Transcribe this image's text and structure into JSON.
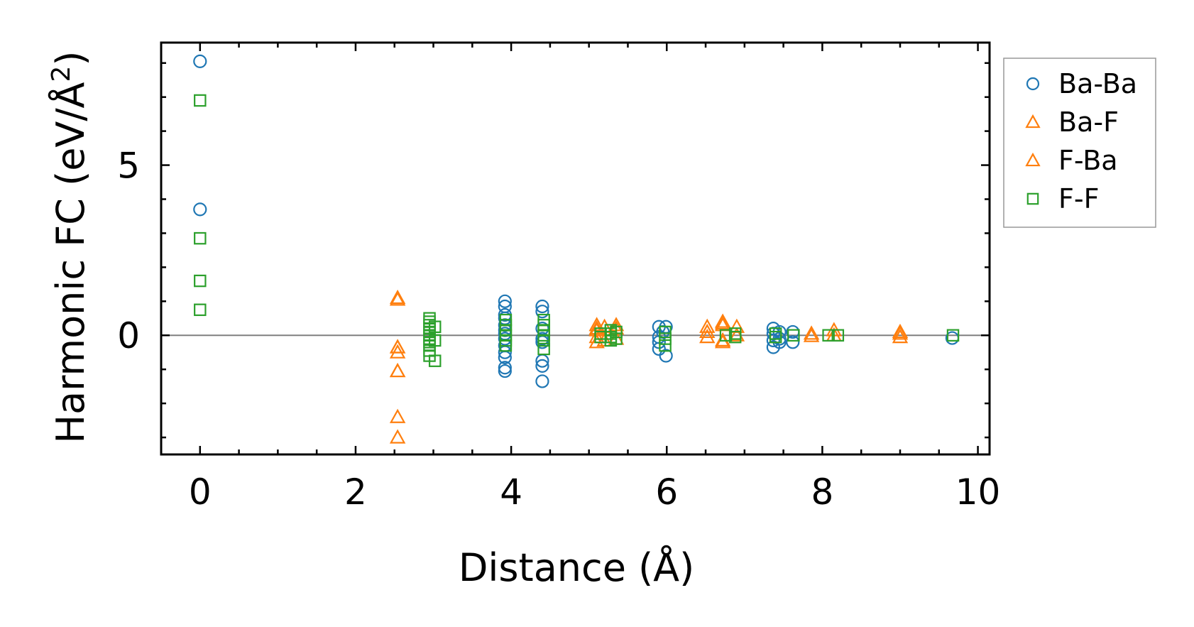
{
  "colors": {
    "Ba-Ba": "#1f77b4",
    "Ba-F": "#ff7f0e",
    "F-Ba": "#ff7f0e",
    "F-F": "#2ca02c",
    "zero_line": "#808080",
    "legend_border": "#999999"
  },
  "chart_data": {
    "type": "scatter",
    "xlabel": "Distance (Å)",
    "ylabel_main": "Harmonic FC (eV/Å",
    "ylabel_sup": "2",
    "ylabel_close": ")",
    "xlim": [
      -0.5,
      10.15
    ],
    "ylim": [
      -3.5,
      8.6
    ],
    "x_ticks": [
      0,
      2,
      4,
      6,
      8,
      10
    ],
    "x_tick_labels": [
      "0",
      "2",
      "4",
      "6",
      "8",
      "10"
    ],
    "y_ticks": [
      0,
      5
    ],
    "y_tick_labels": [
      "0",
      "5"
    ],
    "grid": false,
    "legend_position": "outside-right",
    "zero_line": true,
    "series": [
      {
        "name": "Ba-Ba",
        "marker": "circle",
        "points": [
          [
            0,
            8.05
          ],
          [
            0,
            3.7
          ],
          [
            3.92,
            1.0
          ],
          [
            3.92,
            0.85
          ],
          [
            3.92,
            0.6
          ],
          [
            3.92,
            0.5
          ],
          [
            3.92,
            0.3
          ],
          [
            3.92,
            0.15
          ],
          [
            3.92,
            0.05
          ],
          [
            3.92,
            -0.1
          ],
          [
            3.92,
            -0.3
          ],
          [
            3.92,
            -0.5
          ],
          [
            3.92,
            -0.65
          ],
          [
            3.92,
            -0.95
          ],
          [
            3.92,
            -1.05
          ],
          [
            4.4,
            0.85
          ],
          [
            4.4,
            0.7
          ],
          [
            4.4,
            0.2
          ],
          [
            4.4,
            -0.1
          ],
          [
            4.4,
            -0.2
          ],
          [
            4.4,
            -0.75
          ],
          [
            4.4,
            -0.9
          ],
          [
            4.4,
            -1.35
          ],
          [
            5.9,
            0.25
          ],
          [
            5.95,
            0.1
          ],
          [
            5.9,
            -0.05
          ],
          [
            5.9,
            -0.2
          ],
          [
            5.9,
            -0.4
          ],
          [
            5.99,
            0.25
          ],
          [
            5.99,
            -0.6
          ],
          [
            7.37,
            0.2
          ],
          [
            7.37,
            0.05
          ],
          [
            7.37,
            -0.15
          ],
          [
            7.37,
            -0.35
          ],
          [
            7.45,
            0.1
          ],
          [
            7.45,
            -0.1
          ],
          [
            7.45,
            -0.2
          ],
          [
            7.62,
            0.1
          ],
          [
            7.62,
            -0.2
          ],
          [
            9.67,
            -0.08
          ]
        ]
      },
      {
        "name": "Ba-F",
        "marker": "triangle",
        "points": [
          [
            2.54,
            1.1
          ],
          [
            2.54,
            -0.35
          ],
          [
            2.54,
            -0.5
          ],
          [
            2.54,
            -1.05
          ],
          [
            2.54,
            -2.4
          ],
          [
            2.54,
            -3.0
          ],
          [
            5.1,
            0.3
          ],
          [
            5.1,
            0.15
          ],
          [
            5.1,
            -0.05
          ],
          [
            5.1,
            -0.2
          ],
          [
            5.2,
            0.25
          ],
          [
            5.2,
            -0.15
          ],
          [
            5.35,
            0.3
          ],
          [
            5.35,
            -0.1
          ],
          [
            6.52,
            0.25
          ],
          [
            6.52,
            0.1
          ],
          [
            6.52,
            -0.05
          ],
          [
            6.72,
            0.4
          ],
          [
            6.72,
            0.3
          ],
          [
            6.72,
            -0.15
          ],
          [
            6.72,
            -0.2
          ],
          [
            6.9,
            0.25
          ],
          [
            6.9,
            0.0
          ],
          [
            7.86,
            0.05
          ],
          [
            7.86,
            -0.02
          ],
          [
            8.15,
            0.15
          ],
          [
            8.15,
            0.0
          ],
          [
            9.0,
            0.1
          ],
          [
            9.0,
            -0.05
          ]
        ]
      },
      {
        "name": "F-Ba",
        "marker": "triangle",
        "points": [
          [
            2.54,
            1.05
          ],
          [
            2.54,
            -0.35
          ],
          [
            2.54,
            -1.05
          ],
          [
            5.1,
            0.2
          ],
          [
            5.35,
            0.2
          ],
          [
            6.72,
            0.35
          ],
          [
            9.0,
            0.05
          ]
        ]
      },
      {
        "name": "F-F",
        "marker": "square",
        "points": [
          [
            0,
            6.9
          ],
          [
            0,
            2.85
          ],
          [
            0,
            1.6
          ],
          [
            0,
            0.75
          ],
          [
            2.95,
            0.5
          ],
          [
            2.95,
            0.4
          ],
          [
            2.95,
            0.3
          ],
          [
            2.95,
            0.2
          ],
          [
            2.95,
            0.1
          ],
          [
            2.95,
            0.0
          ],
          [
            2.95,
            -0.1
          ],
          [
            2.95,
            -0.2
          ],
          [
            2.95,
            -0.3
          ],
          [
            2.95,
            -0.45
          ],
          [
            2.95,
            -0.6
          ],
          [
            3.02,
            0.25
          ],
          [
            3.02,
            -0.15
          ],
          [
            3.02,
            -0.75
          ],
          [
            3.93,
            0.45
          ],
          [
            3.93,
            0.3
          ],
          [
            3.93,
            0.15
          ],
          [
            3.93,
            0.0
          ],
          [
            3.93,
            -0.15
          ],
          [
            3.93,
            -0.3
          ],
          [
            4.42,
            0.45
          ],
          [
            4.42,
            0.3
          ],
          [
            4.42,
            0.15
          ],
          [
            4.42,
            0.0
          ],
          [
            4.42,
            -0.15
          ],
          [
            4.42,
            -0.4
          ],
          [
            5.15,
            0.05
          ],
          [
            5.15,
            -0.05
          ],
          [
            5.28,
            0.15
          ],
          [
            5.28,
            0.05
          ],
          [
            5.28,
            -0.05
          ],
          [
            5.28,
            -0.15
          ],
          [
            5.35,
            0.1
          ],
          [
            5.35,
            -0.1
          ],
          [
            5.98,
            0.1
          ],
          [
            5.98,
            -0.1
          ],
          [
            5.98,
            -0.3
          ],
          [
            6.76,
            0.0
          ],
          [
            6.88,
            0.05
          ],
          [
            6.88,
            -0.05
          ],
          [
            7.4,
            0.05
          ],
          [
            7.4,
            -0.05
          ],
          [
            7.63,
            0.0
          ],
          [
            8.08,
            0.0
          ],
          [
            8.2,
            0.0
          ],
          [
            9.68,
            0.0
          ]
        ]
      }
    ]
  }
}
